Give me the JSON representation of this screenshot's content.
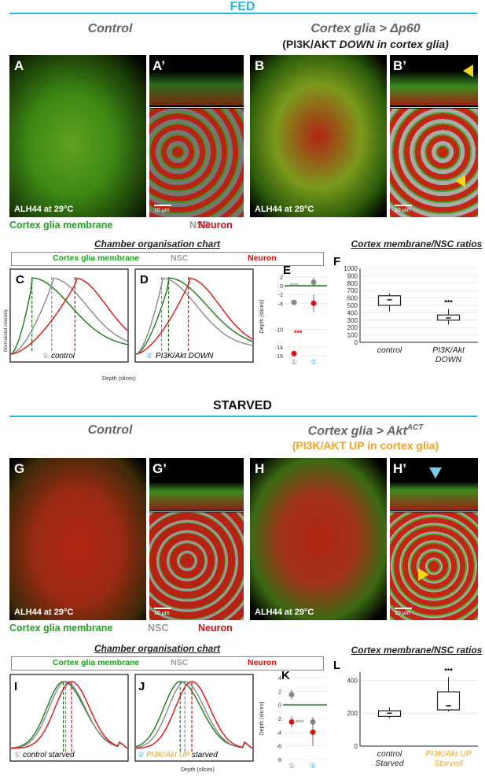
{
  "fed": {
    "heading": "FED",
    "control_title": "Control",
    "exp_title": "Cortex glia > Δp60",
    "exp_sub_pre": "(PI3K/AKT ",
    "exp_sub_em": "DOWN in cortex glia)",
    "labels": {
      "A": "A",
      "A2": "A’",
      "B": "B",
      "B2": "B’"
    },
    "stamp": "ALH44 at 29°C",
    "scale": "10 μm",
    "legend": {
      "glia": "Cortex glia membrane",
      "nsc": "NSC",
      "neuron": "Neuron"
    },
    "chamber_title": "Chamber organisation chart",
    "panels": {
      "C": "C",
      "D": "D",
      "E": "E",
      "F": "F"
    },
    "c_caption": "control",
    "d_caption": "PI3K/Akt DOWN",
    "ratio_title": "Cortex membrane/NSC ratios"
  },
  "starved": {
    "heading": "STARVED",
    "control_title": "Control",
    "exp_title_pre": "Cortex glia > Akt",
    "exp_title_sup": "ACT",
    "exp_sub": "(PI3K/AKT UP in cortex glia)",
    "labels": {
      "G": "G",
      "G2": "G’",
      "H": "H",
      "H2": "H’"
    },
    "stamp": "ALH44 at 29°C",
    "scale": "10 μm",
    "legend": {
      "glia": "Cortex glia membrane",
      "nsc": "NSC",
      "neuron": "Neuron"
    },
    "chamber_title": "Chamber organisation chart",
    "panels": {
      "I": "I",
      "J": "J",
      "K": "K",
      "L": "L"
    },
    "i_caption": "control starved",
    "j_caption_em": "PI3K/Akt UP",
    "j_caption_rest": " starved",
    "x_label": "Depth (slices)",
    "ratio_title": "Cortex membrane/NSC ratios",
    "l_cat1": "control",
    "l_cat1b": "Starved",
    "l_cat2": "PI3K/Akt UP",
    "l_cat2b": "Starved"
  },
  "axes": {
    "norm_intensity": "Normalised intensity",
    "depth": "Depth (slices)",
    "depth_e": "Depth (slices)"
  },
  "chart_data": [
    {
      "type": "line",
      "panel": "C",
      "series": [
        {
          "name": "Cortex glia membrane",
          "color": "#1a7a1a",
          "peak": 0.18
        },
        {
          "name": "NSC",
          "color": "#888888",
          "peak": 0.35
        },
        {
          "name": "Neuron",
          "color": "#dd1111",
          "peak": 0.55
        }
      ]
    },
    {
      "type": "line",
      "panel": "D",
      "series": [
        {
          "name": "Cortex glia membrane",
          "color": "#1a7a1a",
          "peak": 0.28
        },
        {
          "name": "NSC",
          "color": "#888888",
          "peak": 0.22
        },
        {
          "name": "Neuron",
          "color": "#dd1111",
          "peak": 0.45
        }
      ]
    },
    {
      "type": "scatter",
      "panel": "E",
      "ylabel": "Depth (slices)",
      "ylim": [
        -16,
        2
      ],
      "yticks": [
        2,
        0,
        -2,
        -4,
        -10,
        -14,
        -16
      ],
      "groups": [
        "①",
        "②"
      ],
      "points": [
        {
          "group": 1,
          "series": "NSC",
          "y": -3.8,
          "err": 0.5,
          "color": "#888888"
        },
        {
          "group": 1,
          "series": "Neuron",
          "y": -15.5,
          "err": 0.4,
          "color": "#dd1111"
        },
        {
          "group": 2,
          "series": "NSC",
          "y": 0.8,
          "err": 1.0,
          "color": "#888888"
        },
        {
          "group": 2,
          "series": "Neuron",
          "y": -4.0,
          "err": 2.0,
          "color": "#dd1111"
        }
      ],
      "annotations": [
        "***",
        "***"
      ]
    },
    {
      "type": "box",
      "panel": "F",
      "ylim": [
        0,
        1000
      ],
      "yticks": [
        0,
        100,
        200,
        300,
        400,
        500,
        600,
        700,
        800,
        900,
        1000
      ],
      "categories": [
        "control",
        "PI3K/Akt DOWN"
      ],
      "boxes": [
        {
          "min": 420,
          "q1": 500,
          "median": 575,
          "q3": 630,
          "max": 660
        },
        {
          "min": 240,
          "q1": 300,
          "median": 330,
          "q3": 370,
          "max": 450
        }
      ],
      "annotation": "***"
    },
    {
      "type": "line",
      "panel": "I",
      "series": [
        {
          "name": "Cortex glia membrane",
          "color": "#1a7a1a",
          "peak": 0.45
        },
        {
          "name": "NSC",
          "color": "#888888",
          "peak": 0.47
        },
        {
          "name": "Neuron",
          "color": "#dd1111",
          "peak": 0.52
        }
      ]
    },
    {
      "type": "line",
      "panel": "J",
      "series": [
        {
          "name": "Cortex glia membrane",
          "color": "#1a7a1a",
          "peak": 0.38
        },
        {
          "name": "NSC",
          "color": "#888888",
          "peak": 0.42
        },
        {
          "name": "Neuron",
          "color": "#dd1111",
          "peak": 0.48
        }
      ]
    },
    {
      "type": "scatter",
      "panel": "K",
      "ylabel": "Depth (slices)",
      "ylim": [
        -8,
        4
      ],
      "yticks": [
        4,
        2,
        0,
        -2,
        -4,
        -6,
        -8
      ],
      "groups": [
        "①",
        "②"
      ],
      "points": [
        {
          "group": 1,
          "series": "NSC",
          "y": 1.5,
          "err": 0.7,
          "color": "#888888"
        },
        {
          "group": 1,
          "series": "Neuron",
          "y": -2.5,
          "err": 0.8,
          "color": "#dd1111"
        },
        {
          "group": 2,
          "series": "NSC",
          "y": -2.5,
          "err": 0.7,
          "color": "#888888"
        },
        {
          "group": 2,
          "series": "Neuron",
          "y": -4.0,
          "err": 2.0,
          "color": "#dd1111"
        }
      ],
      "annotations": [
        "***"
      ]
    },
    {
      "type": "box",
      "panel": "L",
      "ylim": [
        0,
        450
      ],
      "yticks": [
        0,
        200,
        400
      ],
      "categories": [
        "control Starved",
        "PI3K/Akt UP Starved"
      ],
      "boxes": [
        {
          "min": 170,
          "q1": 180,
          "median": 200,
          "q3": 215,
          "max": 235
        },
        {
          "min": 210,
          "q1": 220,
          "median": 245,
          "q3": 330,
          "max": 420
        }
      ],
      "annotation": "***"
    }
  ]
}
